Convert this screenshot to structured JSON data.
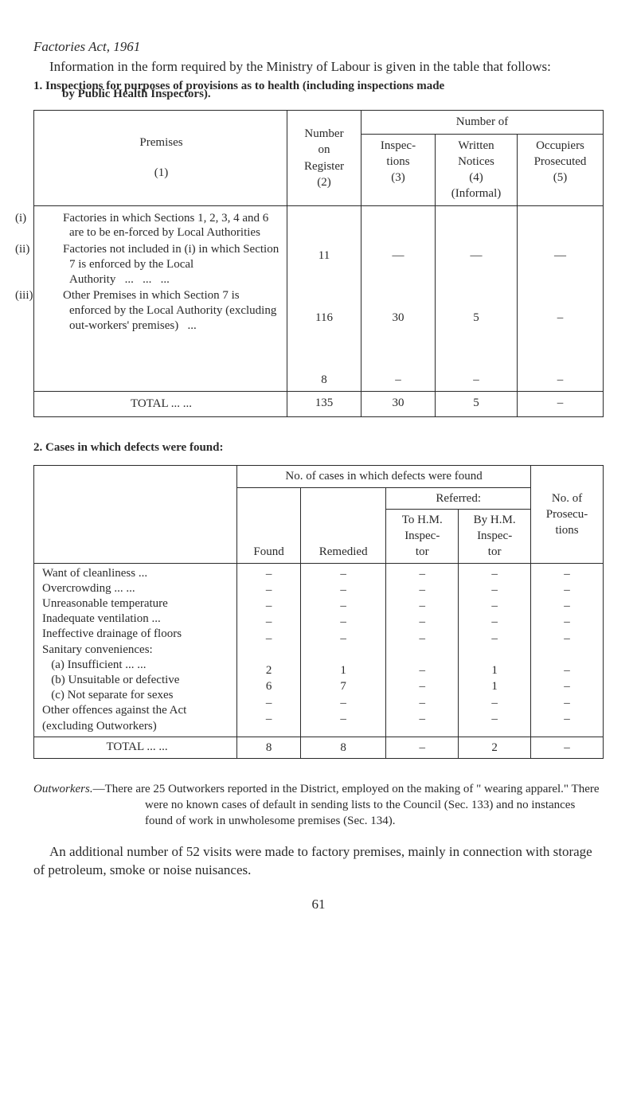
{
  "header": {
    "title": "Factories Act, 1961",
    "intro": "Information in the form required by the Ministry of Labour is given in the table that follows:",
    "sec1_head": "1. Inspections for purposes of provisions as to health (including inspections made",
    "sec1_head_cont": "by Public Health Inspectors)."
  },
  "t1": {
    "h_premises": "Premises",
    "h_premises_num": "(1)",
    "h_number_on_register": "Number on Register (2)",
    "h_number_of": "Number of",
    "h_inspections": "Inspec-\ntions\n(3)",
    "h_written": "Written Notices (4) (Informal)",
    "h_occupiers": "Occupiers Prosecuted (5)",
    "row_i": "(i) Factories in which Sections 1, 2, 3, 4 and 6 are to be en-forced by Local Authorities",
    "row_ii": "(ii) Factories not included in (i) in which Section 7 is enforced by the Local Authority   ...   ...   ...",
    "row_iii": "(iii) Other Premises in which Section 7 is enforced by the Local Authority (excluding out-workers' premises)   ...",
    "v": {
      "r1_reg": "11",
      "r1_ins": "—",
      "r1_wn": "—",
      "r1_oc": "—",
      "r2_reg": "116",
      "r2_ins": "30",
      "r2_wn": "5",
      "r2_oc": "–",
      "r3_reg": "8",
      "r3_ins": "–",
      "r3_wn": "–",
      "r3_oc": "–"
    },
    "total_label": "TOTAL   ...   ...",
    "tot": {
      "reg": "135",
      "ins": "30",
      "wn": "5",
      "oc": "–"
    }
  },
  "sec2_head": "2. Cases in which defects were found:",
  "t2": {
    "h_main": "No. of cases in which defects were found",
    "h_prosec": "No. of Prosecu-tions",
    "h_found": "Found",
    "h_rem": "Remedied",
    "h_ref": "Referred:",
    "h_tohm": "To H.M. Inspec-tor",
    "h_byhm": "By H.M. Inspec-tor",
    "rows": [
      {
        "label": "Want of cleanliness   ...",
        "f": "–",
        "r": "–",
        "t": "–",
        "b": "–",
        "p": "–"
      },
      {
        "label": "Overcrowding   ...   ...",
        "f": "–",
        "r": "–",
        "t": "–",
        "b": "–",
        "p": "–"
      },
      {
        "label": "Unreasonable temperature",
        "f": "–",
        "r": "–",
        "t": "–",
        "b": "–",
        "p": "–"
      },
      {
        "label": "Inadequate ventilation   ...",
        "f": "–",
        "r": "–",
        "t": "–",
        "b": "–",
        "p": "–"
      },
      {
        "label": "Ineffective drainage of floors",
        "f": "–",
        "r": "–",
        "t": "–",
        "b": "–",
        "p": "–"
      },
      {
        "label": "Sanitary conveniences:",
        "f": "",
        "r": "",
        "t": "",
        "b": "",
        "p": ""
      },
      {
        "label": "   (a) Insufficient   ...   ...",
        "f": "2",
        "r": "1",
        "t": "–",
        "b": "1",
        "p": "–"
      },
      {
        "label": "   (b) Unsuitable or defective",
        "f": "6",
        "r": "7",
        "t": "–",
        "b": "1",
        "p": "–"
      },
      {
        "label": "   (c) Not separate for sexes",
        "f": "–",
        "r": "–",
        "t": "–",
        "b": "–",
        "p": "–"
      },
      {
        "label": "Other offences against the Act (excluding Outworkers)",
        "f": "–",
        "r": "–",
        "t": "–",
        "b": "–",
        "p": "–"
      }
    ],
    "total_label": "TOTAL   ...   ...",
    "tot": {
      "f": "8",
      "r": "8",
      "t": "–",
      "b": "2",
      "p": "–"
    }
  },
  "outworkers": {
    "lead": "Outworkers.",
    "text": "—There are 25 Outworkers reported in the District, employed on the making of \" wearing apparel.\" There were no known cases of default in sending lists to the Council (Sec. 133) and no instances found of work in unwholesome premises (Sec. 134)."
  },
  "closing": "An additional number of 52 visits were made to factory premises, mainly in connection with storage of petroleum, smoke or noise nuisances.",
  "pagenum": "61",
  "style": {
    "page_bg": "#ffffff",
    "text_color": "#2a2a2a",
    "border_color": "#2a2a2a",
    "body_font_size_pt": 11,
    "header_font_size_pt": 12
  }
}
